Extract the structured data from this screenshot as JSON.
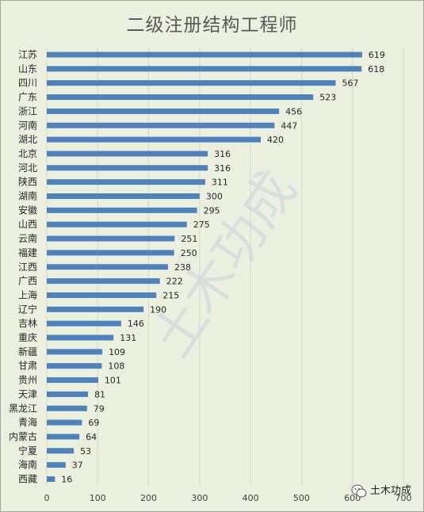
{
  "chart_data": {
    "type": "bar",
    "orientation": "horizontal",
    "title": "二级注册结构工程师",
    "categories": [
      "江苏",
      "山东",
      "四川",
      "广东",
      "浙江",
      "河南",
      "湖北",
      "北京",
      "河北",
      "陕西",
      "湖南",
      "安徽",
      "山西",
      "云南",
      "福建",
      "江西",
      "广西",
      "上海",
      "辽宁",
      "吉林",
      "重庆",
      "新疆",
      "甘肃",
      "贵州",
      "天津",
      "黑龙江",
      "青海",
      "内蒙古",
      "宁夏",
      "海南",
      "西藏"
    ],
    "values": [
      619,
      618,
      567,
      523,
      456,
      447,
      420,
      316,
      316,
      311,
      300,
      295,
      275,
      251,
      250,
      238,
      222,
      215,
      190,
      146,
      131,
      109,
      108,
      101,
      81,
      79,
      69,
      64,
      53,
      37,
      16
    ],
    "xlim": [
      0,
      700
    ],
    "xticks": [
      "0",
      "100",
      "200",
      "300",
      "400",
      "500",
      "600",
      "700"
    ],
    "grid": true,
    "bar_color": "#4f81bd",
    "background": "#ebf1de"
  },
  "watermark": "土木功成",
  "footer": {
    "icon": "wechat-icon",
    "text": "土木功成"
  }
}
